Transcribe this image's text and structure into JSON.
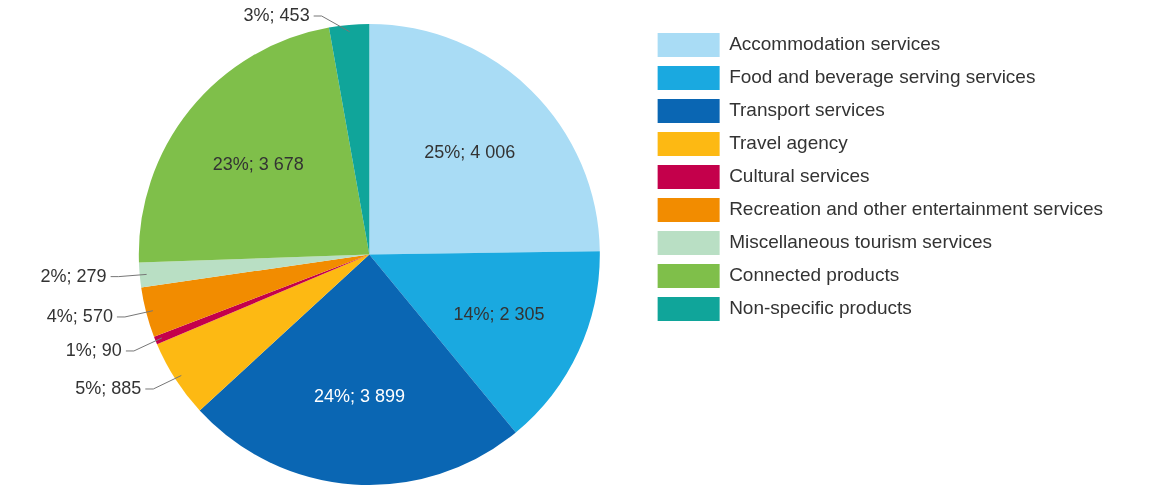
{
  "chart_data": {
    "type": "pie",
    "categories": [
      "Accommodation services",
      "Food and beverage serving services",
      "Transport services",
      "Travel agency",
      "Cultural services",
      "Recreation and other entertainment services",
      "Miscellaneous tourism services",
      "Connected products",
      "Non-specific products"
    ],
    "values": [
      4006,
      2305,
      3899,
      885,
      90,
      570,
      279,
      3678,
      453
    ],
    "colors": [
      "#a9dcf5",
      "#1aa9e0",
      "#0a66b3",
      "#fdb913",
      "#c4004b",
      "#f28c00",
      "#b9dfc4",
      "#7fbf4a",
      "#10a59a"
    ],
    "value_labels": [
      "25%; 4 006",
      "14%; 2 305",
      "24%; 3 899",
      "5%; 885",
      "1%; 90",
      "4%; 570",
      "2%; 279",
      "23%; 3 678",
      "3%; 453"
    ],
    "legend": "right"
  }
}
